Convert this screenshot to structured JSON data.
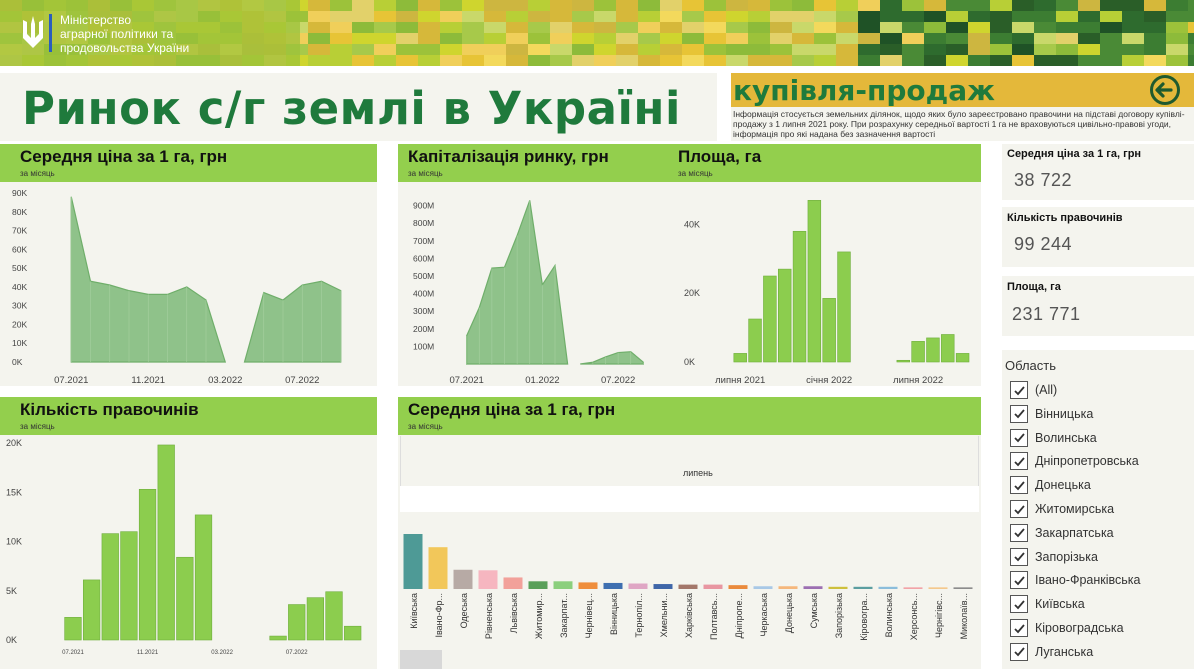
{
  "header": {
    "ministry_lines": [
      "Міністерство",
      "аграрної політики та",
      "продовольства України"
    ],
    "title": "Ринок с/г землі в Україні",
    "section_title": "купівля-продаж",
    "info": "Інформація стосується земельних ділянок, щодо яких було зареєстровано правочини на підставі договору купівлі-продажу з 1 липня 2021 року. При розрахунку середньої вартості 1 га не враховуються цивільно-правові угоди, інформація про які надана без зазначення вартості"
  },
  "kpis": [
    {
      "label": "Середня ціна за 1 га, грн",
      "value": "38 722"
    },
    {
      "label": "Кількість правочинів",
      "value": "99 244"
    },
    {
      "label": "Площа, га",
      "value": "231 771"
    }
  ],
  "filter": {
    "title": "Область",
    "items": [
      "(All)",
      "Вінницька",
      "Волинська",
      "Дніпропетровська",
      "Донецька",
      "Житомирська",
      "Закарпатська",
      "Запорізька",
      "Івано-Франківська",
      "Київська",
      "Кіровоградська",
      "Луганська"
    ]
  },
  "colors": {
    "accent_green": "#93cf4d",
    "area_green": "#8fc28a",
    "title_green": "#1f7a3c",
    "gold": "#e4b83a"
  },
  "chart_data": [
    {
      "type": "area",
      "title": "Середня ціна за 1 га, грн",
      "subtitle": "за місяць",
      "ylim": [
        0,
        90000
      ],
      "yticks": [
        0,
        10000,
        20000,
        30000,
        40000,
        50000,
        60000,
        70000,
        80000,
        90000
      ],
      "ytick_labels": [
        "0K",
        "10K",
        "20K",
        "30K",
        "40K",
        "50K",
        "60K",
        "70K",
        "80K",
        "90K"
      ],
      "x_start": "2021-06",
      "x_end": "2022-10",
      "xtick_labels": [
        {
          "x": "2021-07",
          "label": "07.2021"
        },
        {
          "x": "2021-11",
          "label": "11.2021"
        },
        {
          "x": "2022-03",
          "label": "03.2022"
        },
        {
          "x": "2022-07",
          "label": "07.2022"
        }
      ],
      "segments": [
        [
          [
            "2021-07",
            88000
          ],
          [
            "2021-08",
            43000
          ],
          [
            "2021-09",
            41000
          ],
          [
            "2021-10",
            38000
          ],
          [
            "2021-11",
            36000
          ],
          [
            "2021-12",
            36000
          ],
          [
            "2022-01",
            40000
          ],
          [
            "2022-02",
            33000
          ],
          [
            "2022-03",
            0
          ]
        ],
        [
          [
            "2022-04",
            0
          ],
          [
            "2022-05",
            37000
          ],
          [
            "2022-06",
            33000
          ],
          [
            "2022-07",
            41000
          ],
          [
            "2022-08",
            43000
          ],
          [
            "2022-09",
            38000
          ]
        ]
      ]
    },
    {
      "type": "area",
      "title": "Капіталізація ринку, грн",
      "subtitle": "за місяць",
      "ylim": [
        0,
        1000000000
      ],
      "yticks": [
        100000000,
        200000000,
        300000000,
        400000000,
        500000000,
        600000000,
        700000000,
        800000000,
        900000000
      ],
      "ytick_labels": [
        "100M",
        "200M",
        "300M",
        "400M",
        "500M",
        "600M",
        "700M",
        "800M",
        "900M"
      ],
      "x_start": "2021-06",
      "x_end": "2022-10",
      "xtick_labels": [
        {
          "x": "2021-07",
          "label": "07.2021"
        },
        {
          "x": "2022-01",
          "label": "01.2022"
        },
        {
          "x": "2022-07",
          "label": "07.2022"
        }
      ],
      "segments": [
        [
          [
            "2021-07",
            160000000
          ],
          [
            "2021-08",
            320000000
          ],
          [
            "2021-09",
            545000000
          ],
          [
            "2021-10",
            550000000
          ],
          [
            "2021-11",
            730000000
          ],
          [
            "2021-12",
            930000000
          ],
          [
            "2022-01",
            450000000
          ],
          [
            "2022-02",
            560000000
          ],
          [
            "2022-03",
            0
          ]
        ],
        [
          [
            "2022-04",
            0
          ],
          [
            "2022-05",
            10000000
          ],
          [
            "2022-06",
            40000000
          ],
          [
            "2022-07",
            65000000
          ],
          [
            "2022-08",
            70000000
          ],
          [
            "2022-09",
            10000000
          ]
        ]
      ]
    },
    {
      "type": "bar",
      "title": "Площа, га",
      "subtitle": "за місяць",
      "ylim": [
        0,
        50000
      ],
      "yticks": [
        0,
        20000,
        40000
      ],
      "ytick_labels": [
        "0K",
        "20K",
        "40K"
      ],
      "x_start": "2021-06",
      "x_end": "2022-10",
      "xtick_labels": [
        {
          "x": "2021-07",
          "label": "липня 2021"
        },
        {
          "x": "2022-01",
          "label": "січня 2022"
        },
        {
          "x": "2022-07",
          "label": "липня 2022"
        }
      ],
      "bars": [
        [
          "2021-07",
          2500
        ],
        [
          "2021-08",
          12500
        ],
        [
          "2021-09",
          25000
        ],
        [
          "2021-10",
          27000
        ],
        [
          "2021-11",
          38000
        ],
        [
          "2021-12",
          47000
        ],
        [
          "2022-01",
          18500
        ],
        [
          "2022-02",
          32000
        ],
        [
          "2022-06",
          500
        ],
        [
          "2022-07",
          6000
        ],
        [
          "2022-08",
          7000
        ],
        [
          "2022-09",
          8000
        ],
        [
          "2022-10",
          2500
        ]
      ]
    },
    {
      "type": "bar",
      "title": "Кількість правочинів",
      "subtitle": "за місяць",
      "ylim": [
        0,
        20000
      ],
      "yticks": [
        0,
        5000,
        10000,
        15000,
        20000
      ],
      "ytick_labels": [
        "0K",
        "5K",
        "10K",
        "15K",
        "20K"
      ],
      "x_start": "2021-06",
      "x_end": "2022-10",
      "xtick_labels": [
        {
          "x": "2021-07",
          "label": "07.2021"
        },
        {
          "x": "2021-11",
          "label": "11.2021"
        },
        {
          "x": "2022-03",
          "label": "03.2022"
        },
        {
          "x": "2022-07",
          "label": "07.2022"
        }
      ],
      "bars": [
        [
          "2021-07",
          2300
        ],
        [
          "2021-08",
          6100
        ],
        [
          "2021-09",
          10800
        ],
        [
          "2021-10",
          11000
        ],
        [
          "2021-11",
          15300
        ],
        [
          "2021-12",
          19800
        ],
        [
          "2022-01",
          8400
        ],
        [
          "2022-02",
          12700
        ],
        [
          "2022-06",
          400
        ],
        [
          "2022-07",
          3600
        ],
        [
          "2022-08",
          4300
        ],
        [
          "2022-09",
          4900
        ],
        [
          "2022-10",
          1400
        ]
      ]
    },
    {
      "type": "bar",
      "title": "Середня ціна за 1 га, грн",
      "subtitle": "за місяць",
      "header_label": "липень",
      "categories": [
        "Київська",
        "Івано-Фр...",
        "Одеська",
        "Рівненська",
        "Львівська",
        "Житомир...",
        "Закарпат...",
        "Чернівец...",
        "Вінницька",
        "Тернопіл...",
        "Хмельни...",
        "Харківська",
        "Полтавсь...",
        "Дніпропе...",
        "Черкаська",
        "Донецька",
        "Сумська",
        "Запорізька",
        "Кіровогра...",
        "Волинська",
        "Херсонсь...",
        "Чернігівс...",
        "Миколаїв..."
      ],
      "values": [
        100,
        76,
        35,
        34,
        21,
        14,
        14,
        12,
        11,
        10,
        9,
        8,
        8,
        7,
        5,
        5,
        5,
        4,
        4,
        4,
        3,
        3,
        3
      ],
      "colors": [
        "#4e9a96",
        "#f2c75a",
        "#b7aaa5",
        "#f6b6c0",
        "#f2a19a",
        "#5aa05a",
        "#8bcf7d",
        "#ef8e3c",
        "#3e6fb0",
        "#dfa6c4",
        "#3f66a8",
        "#a3776a",
        "#e896a1",
        "#ea8a3c",
        "#a8c8e6",
        "#f5b77c",
        "#9c6fb2",
        "#cec03c",
        "#5b9ea0",
        "#8bbddb",
        "#f2a3a7",
        "#f4c88c",
        "#8c8c8c"
      ]
    }
  ]
}
